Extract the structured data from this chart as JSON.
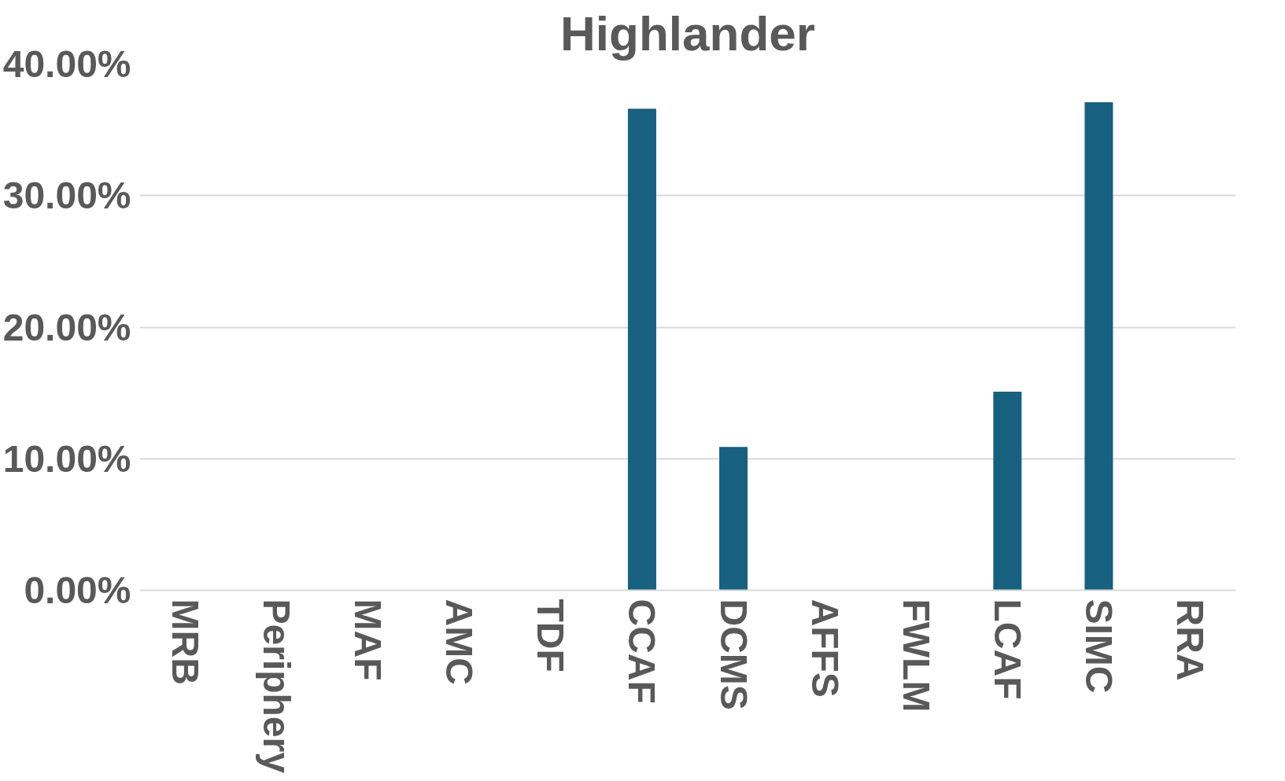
{
  "chart_data": {
    "type": "bar",
    "title": "Highlander",
    "categories": [
      "MRB",
      "Periphery",
      "MAF",
      "AMC",
      "TDF",
      "CCAF",
      "DCMS",
      "AFFS",
      "FWLM",
      "LCAF",
      "SIMC",
      "RRA"
    ],
    "values": [
      0,
      0,
      0,
      0,
      0,
      36.6,
      10.9,
      0,
      0,
      15.1,
      37.1,
      0
    ],
    "color": "#17607f",
    "ylim": [
      0,
      40
    ],
    "yticks": [
      {
        "value": 0,
        "label": "0.00%"
      },
      {
        "value": 10,
        "label": "10.00%"
      },
      {
        "value": 20,
        "label": "20.00%"
      },
      {
        "value": 30,
        "label": "30.00%"
      },
      {
        "value": 40,
        "label": "40.00%"
      }
    ],
    "grid": "y"
  }
}
